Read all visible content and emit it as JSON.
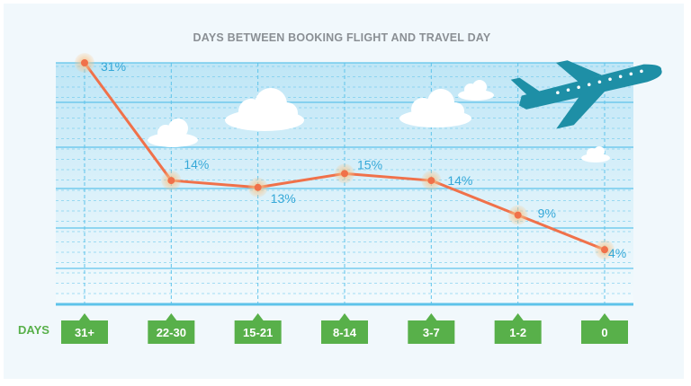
{
  "chart_data": {
    "type": "line",
    "title": "DAYS BETWEEN BOOKING FLIGHT AND TRAVEL DAY",
    "xlabel": "DAYS",
    "ylabel": "",
    "categories": [
      "31+",
      "22-30",
      "15-21",
      "8-14",
      "3-7",
      "1-2",
      "0"
    ],
    "series": [
      {
        "values": [
          31,
          14,
          13,
          15,
          14,
          9,
          4
        ]
      }
    ],
    "data_labels": [
      "31%",
      "14%",
      "13%",
      "15%",
      "14%",
      "9%",
      "4%"
    ],
    "ylim": [
      0,
      31
    ],
    "grid": true,
    "colors": {
      "line": "#f0714a",
      "marker_halo": "#f7c58a",
      "grid": "#5ec3ea",
      "plot_fill_top": "#bfe6f6",
      "plot_fill_bottom": "#f3fafd",
      "label": "#35a8d8",
      "tick_bg": "#58b04a",
      "title": "#8a8f94",
      "plane": "#1e8fa6"
    },
    "decorations": [
      "airplane-icon",
      "cloud-icon"
    ]
  }
}
